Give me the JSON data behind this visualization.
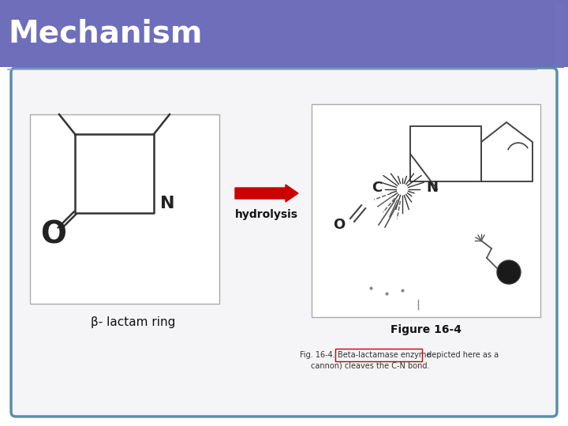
{
  "title": "Mechanism",
  "title_bg_color": "#6e6ebb",
  "title_text_color": "#ffffff",
  "title_fontsize": 28,
  "slide_bg_color": "#ffffff",
  "content_bg_color": "#f5f5f8",
  "border_color": "#5b8fa8",
  "accent_bar_color": "#7070bb",
  "arrow_color": "#cc0000",
  "arrow_label": "hydrolysis",
  "arrow_label_fontsize": 10,
  "beta_lactam_label": "β- lactam ring",
  "beta_lactam_label_fontsize": 11,
  "figure_caption": "Figure 16-4",
  "fig_caption_fontsize": 10,
  "small_caption_prefix": "Fig. 16-4.    ",
  "small_caption_highlight": "Beta-lactamase enzyme",
  "small_caption_suffix": " depicted here as a\ncannon) cleaves the C-N bond.",
  "small_caption_fontsize": 7,
  "highlight_box_color": "#cc0000",
  "underline_color": "#9999cc",
  "ring_color": "#333333",
  "O_circle_color": "#333333"
}
